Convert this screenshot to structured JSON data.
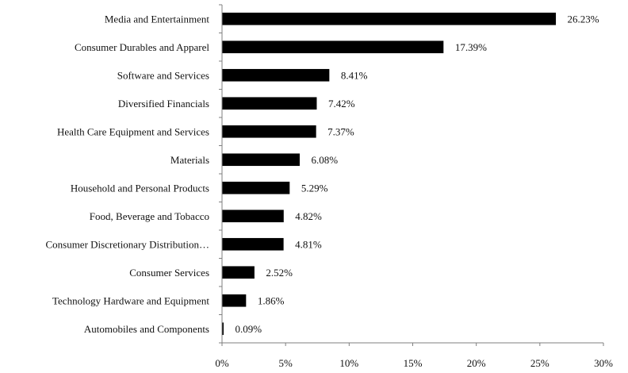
{
  "chart_data": {
    "type": "bar",
    "orientation": "horizontal",
    "title": "",
    "xlabel": "",
    "ylabel": "",
    "xlim": [
      0,
      30
    ],
    "grid": false,
    "legend": "none",
    "bar_color": "#000000",
    "categories": [
      "Media and Entertainment",
      "Consumer Durables and Apparel",
      "Software and Services",
      "Diversified Financials",
      "Health Care Equipment and Services",
      "Materials",
      "Household and Personal Products",
      "Food, Beverage and Tobacco",
      "Consumer Discretionary Distribution…",
      "Consumer Services",
      "Technology Hardware and Equipment",
      "Automobiles and Components"
    ],
    "values": [
      26.23,
      17.39,
      8.41,
      7.42,
      7.37,
      6.08,
      5.29,
      4.82,
      4.81,
      2.52,
      1.86,
      0.09
    ],
    "data_labels": [
      "26.23%",
      "17.39%",
      "8.41%",
      "7.42%",
      "7.37%",
      "6.08%",
      "5.29%",
      "4.82%",
      "4.81%",
      "2.52%",
      "1.86%",
      "0.09%"
    ],
    "x_ticks": [
      0,
      5,
      10,
      15,
      20,
      25,
      30
    ],
    "x_tick_labels": [
      "0%",
      "5%",
      "10%",
      "15%",
      "20%",
      "25%",
      "30%"
    ]
  }
}
